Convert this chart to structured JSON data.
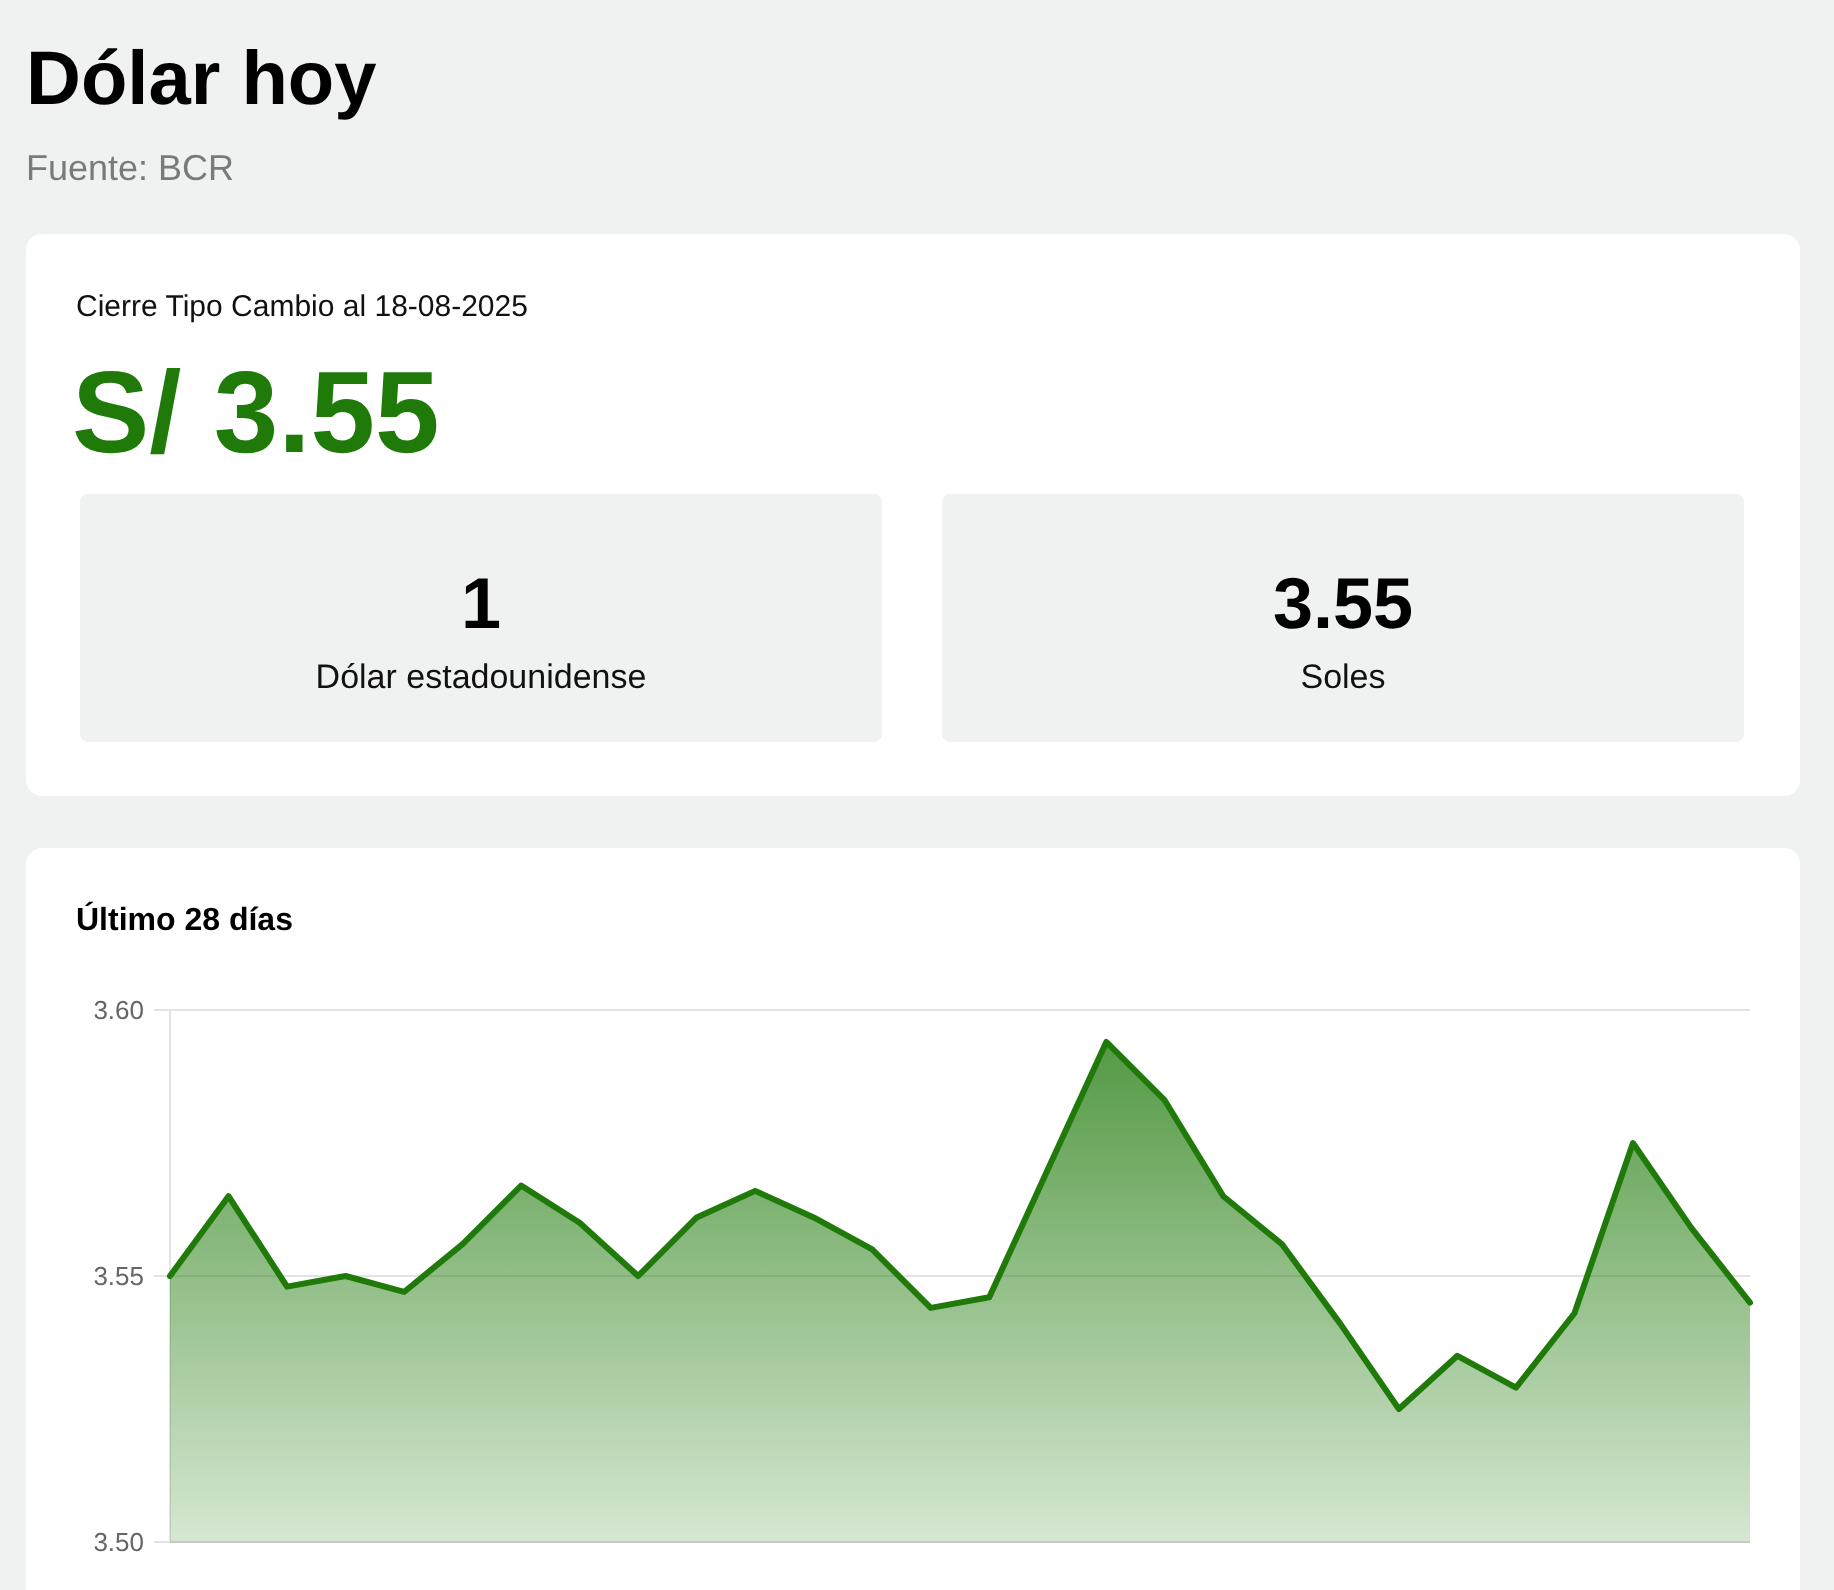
{
  "chart_data": [
    {
      "type": "other",
      "title": "Dólar hoy",
      "subtitle": "Fuente: BCR",
      "annotations": [
        "Cierre Tipo Cambio al 18-08-2025",
        "S/ 3.55"
      ],
      "categories": [
        "Dólar estadounidense",
        "Soles"
      ],
      "values": [
        1,
        3.55
      ],
      "data_labels": true
    },
    {
      "type": "area",
      "title": "Último 28 días",
      "categories": [
        null,
        null,
        null,
        null,
        null,
        null,
        null,
        null,
        null,
        null,
        null,
        null,
        null,
        null,
        null,
        null,
        null,
        null,
        null,
        null,
        null,
        null,
        null,
        null,
        null,
        null,
        null,
        null
      ],
      "values": [
        3.55,
        3.565,
        3.548,
        3.55,
        3.547,
        3.556,
        3.567,
        3.56,
        3.55,
        3.561,
        3.566,
        3.561,
        3.555,
        3.544,
        3.546,
        3.57,
        3.594,
        3.583,
        3.565,
        3.556,
        3.541,
        3.525,
        3.535,
        3.529,
        3.543,
        3.575,
        3.559,
        3.545
      ],
      "color": "#1f7a0a",
      "ylim": [
        3.5,
        3.6
      ],
      "yticks": [
        {
          "value": 3.5,
          "label": "3.50"
        },
        {
          "value": 3.55,
          "label": "3.55"
        },
        {
          "value": 3.6,
          "label": "3.60"
        }
      ],
      "grid": "y",
      "tick_labels": "y"
    }
  ]
}
